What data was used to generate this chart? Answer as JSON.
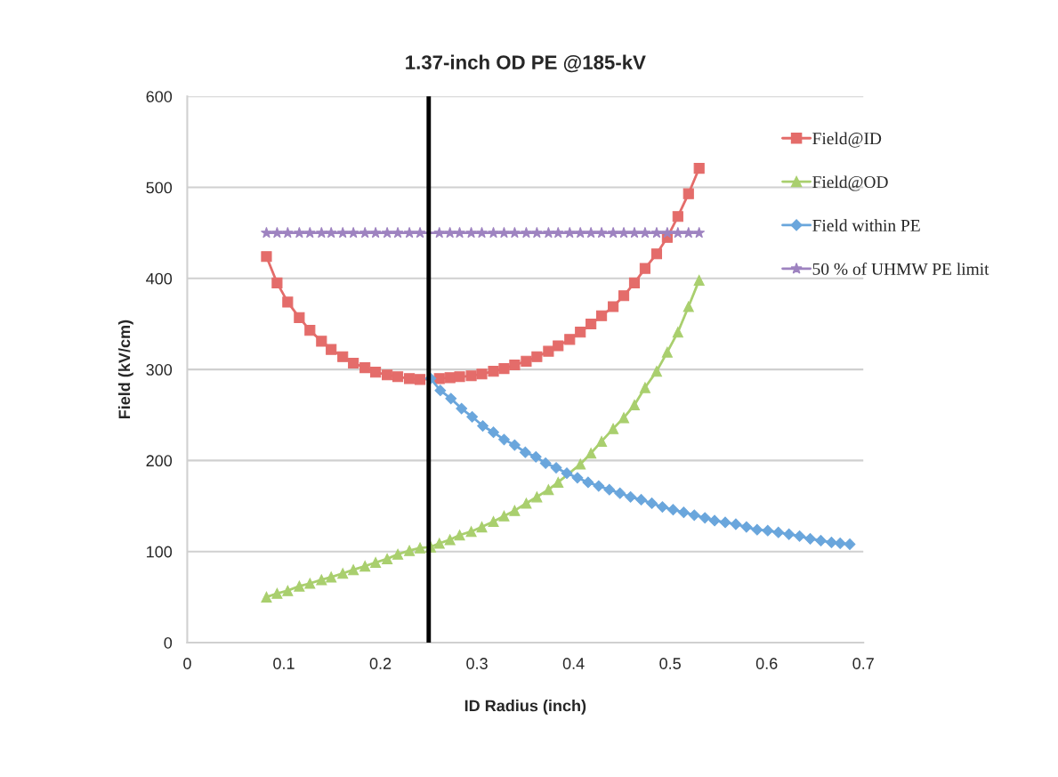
{
  "chart_data": {
    "type": "line",
    "title": "1.37-inch OD PE @185-kV",
    "xlabel": "ID Radius (inch)",
    "ylabel": "Field (kV/cm)",
    "xlim": [
      0,
      0.7
    ],
    "xticks": [
      0,
      0.1,
      0.2,
      0.3,
      0.4,
      0.5,
      0.6,
      0.7
    ],
    "ylim": [
      0,
      600
    ],
    "yticks": [
      0,
      100,
      200,
      300,
      400,
      500,
      600
    ],
    "grid": "y",
    "legend": "right",
    "series": [
      {
        "name": "Field@ID",
        "color": "#e46c6a",
        "marker": "square",
        "x": [
          0.082,
          0.093,
          0.104,
          0.116,
          0.127,
          0.139,
          0.149,
          0.161,
          0.172,
          0.184,
          0.195,
          0.207,
          0.218,
          0.23,
          0.241,
          0.252,
          0.261,
          0.272,
          0.282,
          0.294,
          0.305,
          0.317,
          0.328,
          0.339,
          0.351,
          0.362,
          0.374,
          0.384,
          0.396,
          0.407,
          0.418,
          0.429,
          0.441,
          0.452,
          0.463,
          0.474,
          0.486,
          0.497,
          0.508,
          0.519,
          0.53
        ],
        "values": [
          424,
          395,
          374,
          357,
          343,
          331,
          322,
          314,
          307,
          302,
          297,
          294,
          292,
          290,
          289,
          null,
          290,
          291,
          292,
          293,
          295,
          298,
          301,
          305,
          309,
          314,
          320,
          326,
          333,
          341,
          350,
          359,
          369,
          381,
          395,
          411,
          427,
          445,
          468,
          493,
          521
        ]
      },
      {
        "name": "Field@OD",
        "color": "#a9cf6e",
        "marker": "triangle",
        "x": [
          0.082,
          0.093,
          0.104,
          0.116,
          0.127,
          0.139,
          0.149,
          0.161,
          0.172,
          0.184,
          0.195,
          0.207,
          0.218,
          0.23,
          0.241,
          0.252,
          0.261,
          0.272,
          0.282,
          0.294,
          0.305,
          0.317,
          0.328,
          0.339,
          0.351,
          0.362,
          0.374,
          0.384,
          0.396,
          0.407,
          0.418,
          0.429,
          0.441,
          0.452,
          0.463,
          0.474,
          0.486,
          0.497,
          0.508,
          0.519,
          0.53
        ],
        "values": [
          50,
          54,
          57,
          62,
          65,
          69,
          72,
          76,
          80,
          84,
          88,
          92,
          97,
          101,
          104,
          105,
          109,
          113,
          118,
          122,
          127,
          133,
          139,
          145,
          153,
          160,
          168,
          176,
          null,
          196,
          208,
          221,
          235,
          247,
          261,
          280,
          298,
          319,
          341,
          369,
          398
        ]
      },
      {
        "name": "Field within PE",
        "color": "#6aa6dc",
        "marker": "diamond",
        "x": [
          0.252,
          0.262,
          0.273,
          0.284,
          0.295,
          0.306,
          0.317,
          0.328,
          0.339,
          0.35,
          0.361,
          0.371,
          0.382,
          0.393,
          0.404,
          0.415,
          0.426,
          0.437,
          0.448,
          0.459,
          0.47,
          0.481,
          0.492,
          0.503,
          0.514,
          0.525,
          0.536,
          0.546,
          0.557,
          0.568,
          0.579,
          0.59,
          0.601,
          0.612,
          0.623,
          0.634,
          0.645,
          0.656,
          0.667,
          0.676,
          0.686
        ],
        "values": [
          290,
          277,
          268,
          257,
          248,
          238,
          231,
          223,
          217,
          209,
          204,
          197,
          192,
          186,
          181,
          176,
          172,
          168,
          164,
          160,
          157,
          153,
          149,
          146,
          143,
          140,
          137,
          134,
          132,
          130,
          127,
          124,
          123,
          121,
          119,
          117,
          114,
          112,
          110,
          109,
          108
        ]
      },
      {
        "name": "50 % of UHMW PE limit",
        "color": "#9e83c0",
        "marker": "star",
        "x": [
          0.082,
          0.093,
          0.104,
          0.116,
          0.127,
          0.139,
          0.149,
          0.161,
          0.172,
          0.184,
          0.195,
          0.207,
          0.218,
          0.23,
          0.241,
          0.252,
          0.261,
          0.272,
          0.282,
          0.294,
          0.305,
          0.317,
          0.328,
          0.339,
          0.351,
          0.362,
          0.374,
          0.384,
          0.396,
          0.407,
          0.418,
          0.429,
          0.441,
          0.452,
          0.463,
          0.474,
          0.486,
          0.497,
          0.508,
          0.519,
          0.53
        ],
        "values": [
          450,
          450,
          450,
          450,
          450,
          450,
          450,
          450,
          450,
          450,
          450,
          450,
          450,
          450,
          450,
          null,
          450,
          450,
          450,
          450,
          450,
          450,
          450,
          450,
          450,
          450,
          450,
          450,
          450,
          450,
          450,
          450,
          450,
          450,
          450,
          450,
          450,
          450,
          450,
          450,
          450
        ]
      }
    ],
    "ref_lines": [
      {
        "axis": "x",
        "value": 0.25,
        "color": "#000000",
        "line_style": "solid"
      }
    ]
  }
}
